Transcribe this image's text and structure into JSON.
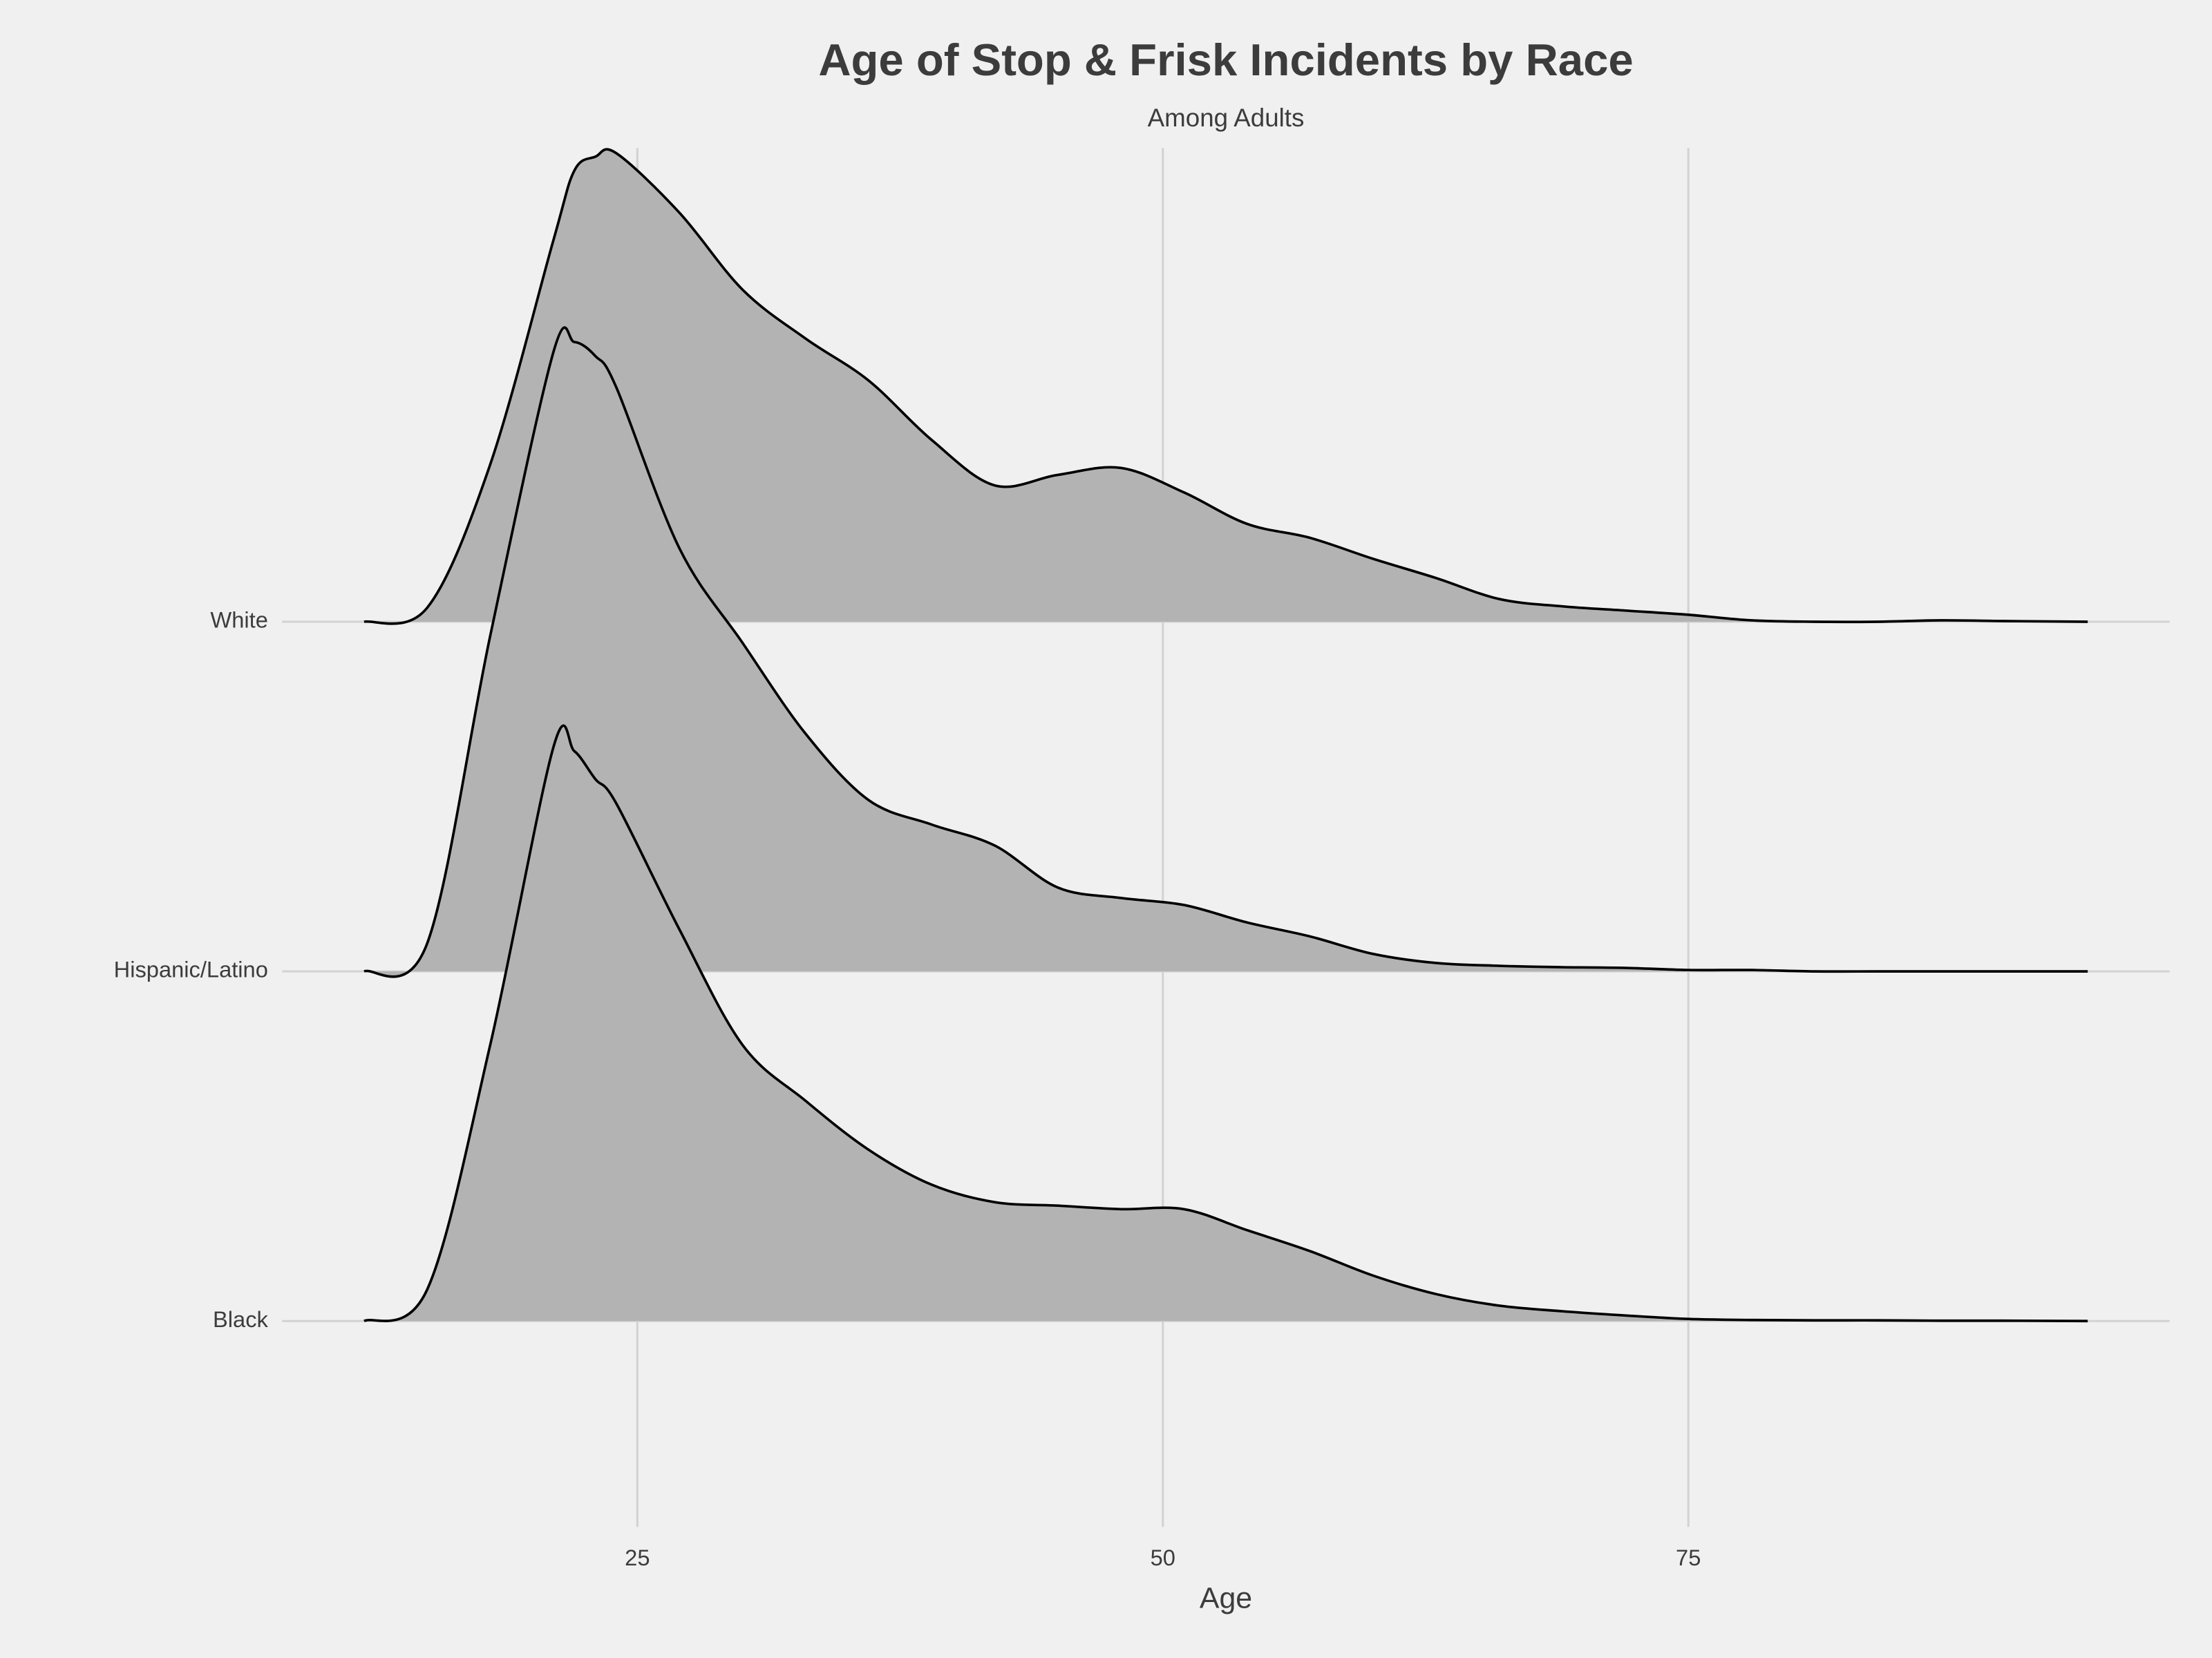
{
  "chart_data": {
    "type": "ridgeline",
    "title": "Age of Stop & Frisk Incidents by Race",
    "subtitle": "Among Adults",
    "x_label": "Age",
    "xlim": [
      8.1,
      97.9
    ],
    "xticks": [
      25,
      50,
      75
    ],
    "grid": true,
    "x": [
      12,
      15,
      18,
      21,
      22,
      23,
      24,
      27,
      30,
      33,
      36,
      39,
      42,
      45,
      48,
      51,
      54,
      57,
      60,
      63,
      66,
      69,
      72,
      75,
      78,
      81,
      84,
      87,
      90,
      94
    ],
    "series": [
      {
        "name": "Black",
        "color": "#b3b3b3",
        "values": [
          0,
          0.09,
          0.79,
          1.64,
          1.63,
          1.55,
          1.48,
          1.12,
          0.79,
          0.63,
          0.49,
          0.39,
          0.34,
          0.33,
          0.32,
          0.32,
          0.26,
          0.2,
          0.13,
          0.077,
          0.044,
          0.028,
          0.016,
          0.006,
          0.003,
          0.002,
          0.002,
          0.001,
          0.001,
          0
        ]
      },
      {
        "name": "Hispanic/Latino",
        "color": "#b3b3b3",
        "values": [
          0,
          0.08,
          0.96,
          1.77,
          1.8,
          1.76,
          1.67,
          1.21,
          0.94,
          0.68,
          0.49,
          0.42,
          0.36,
          0.24,
          0.21,
          0.19,
          0.14,
          0.1,
          0.05,
          0.024,
          0.016,
          0.012,
          0.01,
          0.004,
          0.004,
          0,
          0,
          0,
          0,
          0
        ]
      },
      {
        "name": "White",
        "color": "#b3b3b3",
        "values": [
          0,
          0.04,
          0.45,
          1.09,
          1.29,
          1.33,
          1.34,
          1.17,
          0.95,
          0.81,
          0.69,
          0.52,
          0.39,
          0.42,
          0.44,
          0.37,
          0.28,
          0.24,
          0.18,
          0.125,
          0.065,
          0.044,
          0.032,
          0.02,
          0.004,
          0,
          0,
          0.004,
          0.002,
          0
        ]
      }
    ]
  }
}
